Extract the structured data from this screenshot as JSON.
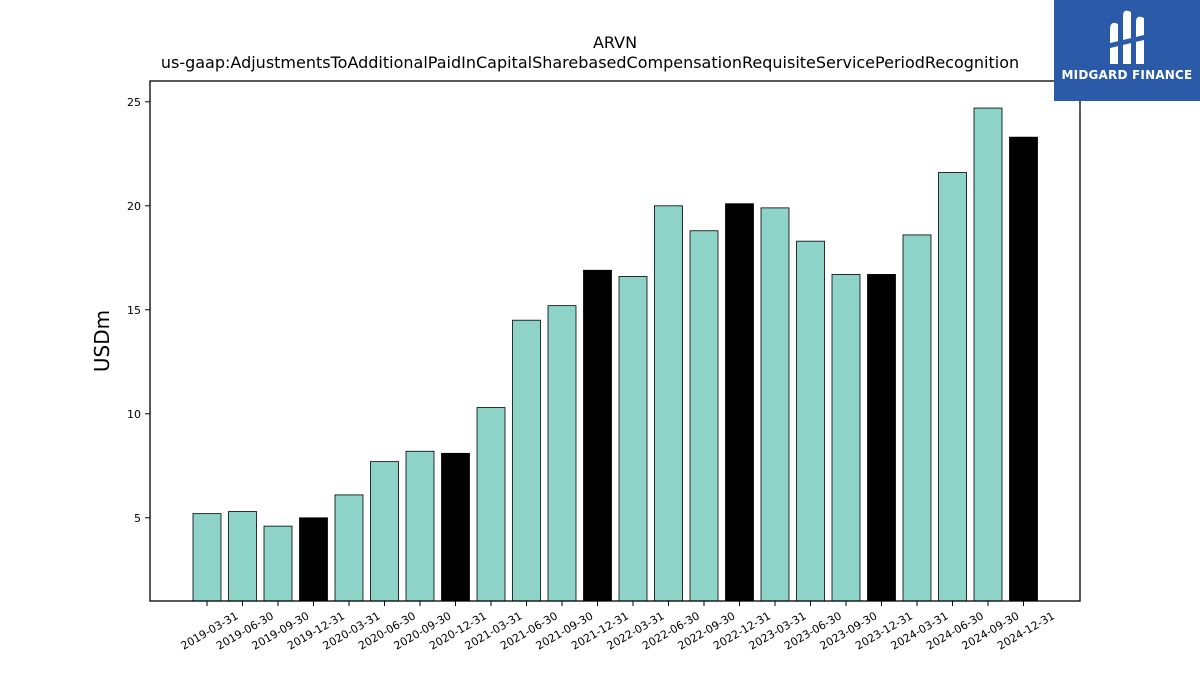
{
  "logo": {
    "text": "MIDGARD FINANCE",
    "background": "#2b5aa8",
    "icon": "midgard-logo-icon"
  },
  "chart_data": {
    "type": "bar",
    "title": "ARVN",
    "subtitle": "us-gaap:AdjustmentsToAdditionalPaidInCapitalSharebasedCompensationRequisiteServicePeriodRecognition",
    "xlabel": "",
    "ylabel": "USDm",
    "ylim": [
      1,
      26
    ],
    "yticks": [
      5,
      10,
      15,
      20,
      25
    ],
    "grid": false,
    "categories": [
      "2019-03-31",
      "2019-06-30",
      "2019-09-30",
      "2019-12-31",
      "2020-03-31",
      "2020-06-30",
      "2020-09-30",
      "2020-12-31",
      "2021-03-31",
      "2021-06-30",
      "2021-09-30",
      "2021-12-31",
      "2022-03-31",
      "2022-06-30",
      "2022-09-30",
      "2022-12-31",
      "2023-03-31",
      "2023-06-30",
      "2023-09-30",
      "2023-12-31",
      "2024-03-31",
      "2024-06-30",
      "2024-09-30",
      "2024-12-31"
    ],
    "values": [
      5.2,
      5.3,
      4.6,
      5.0,
      6.1,
      7.7,
      8.2,
      8.1,
      10.3,
      14.5,
      15.2,
      16.9,
      16.6,
      20.0,
      18.8,
      20.1,
      19.9,
      18.3,
      16.7,
      16.7,
      18.6,
      21.6,
      24.7,
      23.3
    ],
    "colors": {
      "quarter": "#8dd3c7",
      "year_end": "#000000",
      "edge": "#000000"
    }
  }
}
